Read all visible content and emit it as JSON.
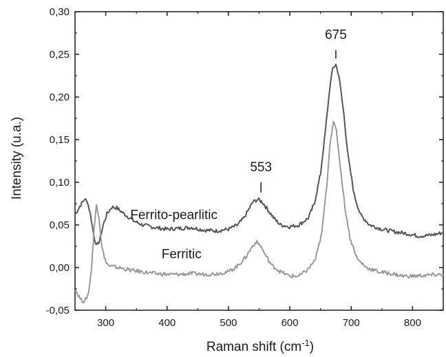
{
  "chart_data": {
    "type": "line",
    "xlabel": "Raman shift (cm",
    "xlabel_sup": "-1",
    "xlabel_close": ")",
    "ylabel": "Intensity (u.a.)",
    "xlim": [
      250,
      850
    ],
    "ylim": [
      -0.05,
      0.3
    ],
    "x_ticks": [
      300,
      400,
      500,
      600,
      700,
      800
    ],
    "x_tick_labels": [
      "300",
      "400",
      "500",
      "600",
      "700",
      "800"
    ],
    "y_ticks": [
      -0.05,
      0.0,
      0.05,
      0.1,
      0.15,
      0.2,
      0.25,
      0.3
    ],
    "y_tick_labels": [
      "-0,05",
      "0,00",
      "0,05",
      "0,10",
      "0,15",
      "0,20",
      "0,25",
      "0,30"
    ],
    "grid": false,
    "series": [
      {
        "name": "Ferrito-pearlitic",
        "color": "#555555",
        "points": [
          [
            250,
            0.062
          ],
          [
            258,
            0.072
          ],
          [
            265,
            0.08
          ],
          [
            270,
            0.078
          ],
          [
            275,
            0.063
          ],
          [
            280,
            0.04
          ],
          [
            285,
            0.025
          ],
          [
            290,
            0.032
          ],
          [
            296,
            0.05
          ],
          [
            302,
            0.063
          ],
          [
            310,
            0.071
          ],
          [
            318,
            0.07
          ],
          [
            330,
            0.063
          ],
          [
            345,
            0.055
          ],
          [
            360,
            0.05
          ],
          [
            380,
            0.047
          ],
          [
            400,
            0.045
          ],
          [
            420,
            0.046
          ],
          [
            440,
            0.047
          ],
          [
            460,
            0.044
          ],
          [
            480,
            0.043
          ],
          [
            500,
            0.045
          ],
          [
            515,
            0.05
          ],
          [
            525,
            0.058
          ],
          [
            533,
            0.068
          ],
          [
            540,
            0.077
          ],
          [
            548,
            0.08
          ],
          [
            555,
            0.077
          ],
          [
            565,
            0.067
          ],
          [
            575,
            0.057
          ],
          [
            585,
            0.05
          ],
          [
            600,
            0.048
          ],
          [
            615,
            0.05
          ],
          [
            630,
            0.058
          ],
          [
            640,
            0.075
          ],
          [
            650,
            0.11
          ],
          [
            658,
            0.16
          ],
          [
            665,
            0.21
          ],
          [
            670,
            0.234
          ],
          [
            675,
            0.238
          ],
          [
            680,
            0.225
          ],
          [
            688,
            0.18
          ],
          [
            695,
            0.13
          ],
          [
            705,
            0.085
          ],
          [
            715,
            0.062
          ],
          [
            730,
            0.05
          ],
          [
            750,
            0.045
          ],
          [
            770,
            0.042
          ],
          [
            790,
            0.04
          ],
          [
            810,
            0.037
          ],
          [
            830,
            0.038
          ],
          [
            850,
            0.041
          ]
        ]
      },
      {
        "name": "Ferritic",
        "color": "#999999",
        "points": [
          [
            250,
            -0.025
          ],
          [
            255,
            -0.032
          ],
          [
            260,
            -0.038
          ],
          [
            266,
            -0.04
          ],
          [
            272,
            -0.03
          ],
          [
            277,
            0.0
          ],
          [
            281,
            0.045
          ],
          [
            285,
            0.073
          ],
          [
            289,
            0.06
          ],
          [
            293,
            0.03
          ],
          [
            298,
            0.01
          ],
          [
            305,
            0.002
          ],
          [
            320,
            0.0
          ],
          [
            340,
            -0.003
          ],
          [
            360,
            -0.005
          ],
          [
            380,
            -0.007
          ],
          [
            400,
            -0.008
          ],
          [
            420,
            -0.008
          ],
          [
            440,
            -0.007
          ],
          [
            460,
            -0.008
          ],
          [
            480,
            -0.007
          ],
          [
            500,
            -0.005
          ],
          [
            515,
            0.002
          ],
          [
            528,
            0.012
          ],
          [
            538,
            0.024
          ],
          [
            545,
            0.03
          ],
          [
            552,
            0.026
          ],
          [
            560,
            0.015
          ],
          [
            570,
            0.003
          ],
          [
            585,
            -0.005
          ],
          [
            600,
            -0.01
          ],
          [
            615,
            -0.01
          ],
          [
            630,
            -0.002
          ],
          [
            642,
            0.01
          ],
          [
            652,
            0.04
          ],
          [
            660,
            0.095
          ],
          [
            666,
            0.15
          ],
          [
            671,
            0.17
          ],
          [
            676,
            0.16
          ],
          [
            682,
            0.12
          ],
          [
            690,
            0.07
          ],
          [
            698,
            0.035
          ],
          [
            710,
            0.01
          ],
          [
            725,
            0.0
          ],
          [
            745,
            -0.005
          ],
          [
            765,
            -0.007
          ],
          [
            785,
            -0.01
          ],
          [
            805,
            -0.01
          ],
          [
            825,
            -0.009
          ],
          [
            850,
            -0.008
          ]
        ]
      }
    ],
    "annotations": [
      {
        "text": "675",
        "x": 675,
        "y": 0.268,
        "marker_y_top": 0.255,
        "marker_y_bottom": 0.245
      },
      {
        "text": "553",
        "x": 553,
        "y": 0.113,
        "marker_y_top": 0.1,
        "marker_y_bottom": 0.088
      }
    ],
    "series_labels": [
      {
        "text": "Ferrito-pearlitic",
        "x": 340,
        "y": 0.057
      },
      {
        "text": "Ferritic",
        "x": 391,
        "y": 0.011
      }
    ]
  }
}
